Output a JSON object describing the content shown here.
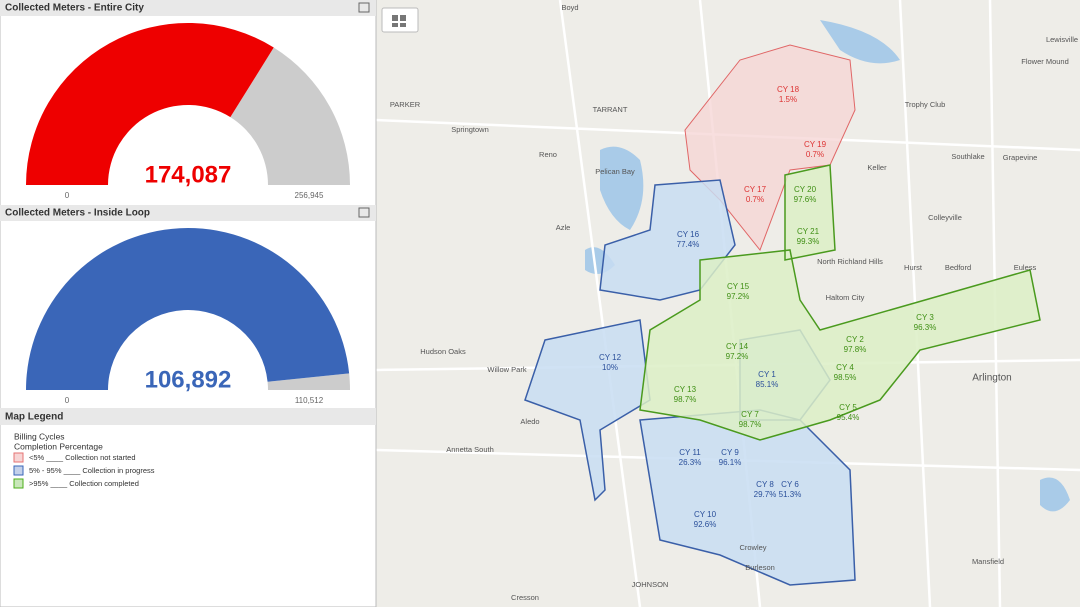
{
  "gauges": [
    {
      "title": "Collected Meters - Entire City",
      "value": 174087,
      "value_label": "174,087",
      "min": 0,
      "max": 256945,
      "max_label": "256,945",
      "color": "#ee0000"
    },
    {
      "title": "Collected Meters - Inside Loop",
      "value": 106892,
      "value_label": "106,892",
      "min": 0,
      "max": 110512,
      "max_label": "110,512",
      "color": "#3a66b8"
    }
  ],
  "legend": {
    "title": "Map Legend",
    "heading": "Billing Cycles",
    "subheading": "Completion Percentage",
    "items": [
      {
        "label": "<5% ____ Collection not started",
        "color": "#e57373"
      },
      {
        "label": "5% - 95% ____ Collection in progress",
        "color": "#3a66b8"
      },
      {
        "label": ">95% ____ Collection completed",
        "color": "#4caf1a"
      }
    ]
  },
  "map": {
    "cycles": [
      {
        "name": "CY 18",
        "percent": "1.5%"
      },
      {
        "name": "CY 19",
        "percent": "0.7%"
      },
      {
        "name": "CY 17",
        "percent": "0.7%"
      },
      {
        "name": "CY 20",
        "percent": "97.6%"
      },
      {
        "name": "CY 21",
        "percent": "99.3%"
      },
      {
        "name": "CY 16",
        "percent": "77.4%"
      },
      {
        "name": "CY 15",
        "percent": "97.2%"
      },
      {
        "name": "CY 3",
        "percent": "96.3%"
      },
      {
        "name": "CY 2",
        "percent": "97.8%"
      },
      {
        "name": "CY 14",
        "percent": "97.2%"
      },
      {
        "name": "CY 12",
        "percent": "10%"
      },
      {
        "name": "CY 1",
        "percent": "85.1%"
      },
      {
        "name": "CY 4",
        "percent": "98.5%"
      },
      {
        "name": "CY 13",
        "percent": "98.7%"
      },
      {
        "name": "CY 5",
        "percent": "95.4%"
      },
      {
        "name": "CY 7",
        "percent": "98.7%"
      },
      {
        "name": "CY 11",
        "percent": "26.3%"
      },
      {
        "name": "CY 9",
        "percent": "96.1%"
      },
      {
        "name": "CY 8",
        "percent": "29.7%"
      },
      {
        "name": "CY 6",
        "percent": "51.3%"
      },
      {
        "name": "CY 10",
        "percent": "92.6%"
      }
    ],
    "places": [
      "Boyd",
      "PARKER",
      "TARRANT",
      "Springtown",
      "Reno",
      "Pelican Bay",
      "Azle",
      "Hudson Oaks",
      "Willow Park",
      "Aledo",
      "Annetta South",
      "Keller",
      "Grapevine",
      "Southlake",
      "Colleyville",
      "North Richland Hills",
      "Haltom City",
      "Hurst",
      "Bedford",
      "Euless",
      "Arlington",
      "Mansfield",
      "Burleson",
      "Crowley",
      "JOHNSON",
      "Cresson",
      "Trophy Club",
      "Flower Mound",
      "Lewisville"
    ]
  }
}
